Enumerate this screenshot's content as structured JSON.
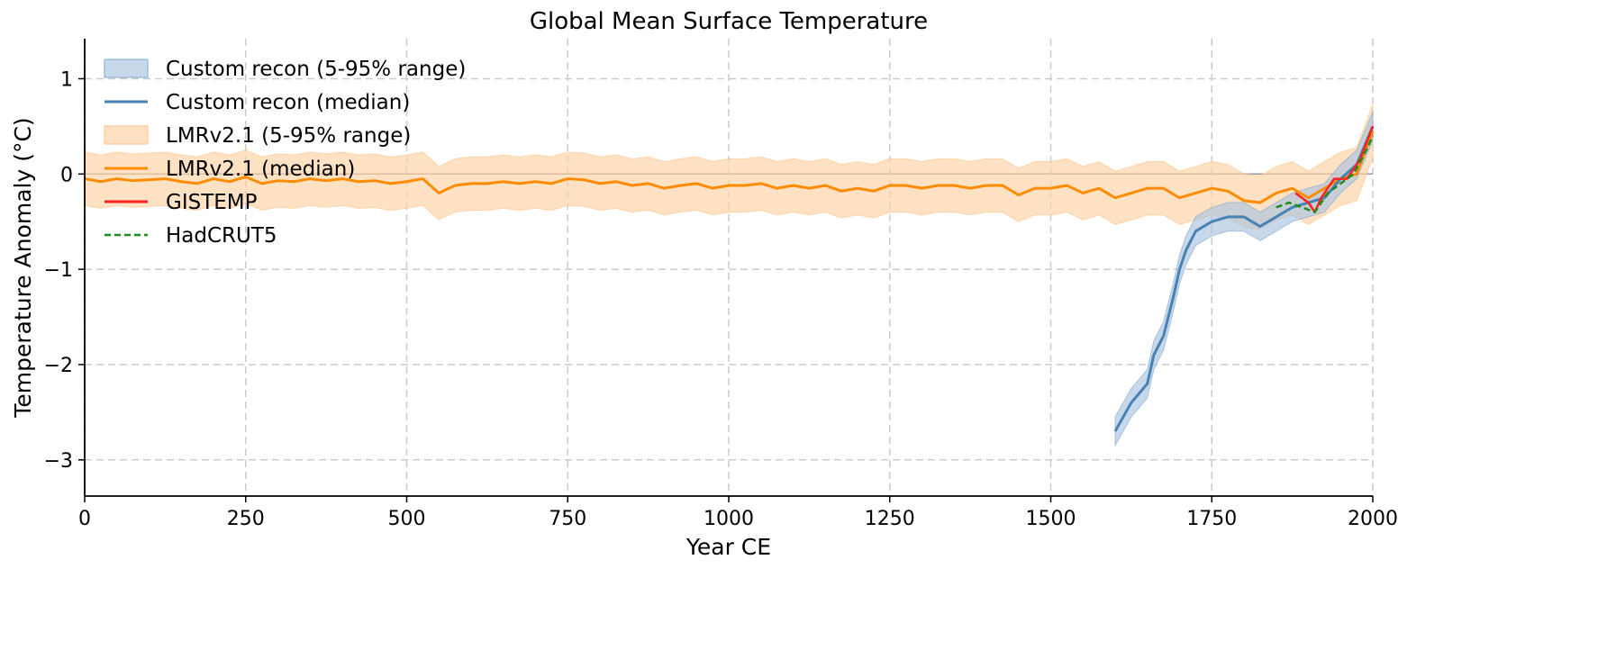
{
  "chart_data": {
    "type": "line",
    "title": "Global Mean Surface Temperature",
    "xlabel": "Year CE",
    "ylabel": "Temperature Anomaly (°C)",
    "xlim": [
      0,
      2000
    ],
    "ylim": [
      -3.38,
      1.42
    ],
    "xticks": [
      0,
      250,
      500,
      750,
      1000,
      1250,
      1500,
      1750,
      2000
    ],
    "xtick_labels": [
      "0",
      "250",
      "500",
      "750",
      "1000",
      "1250",
      "1500",
      "1750",
      "2000"
    ],
    "yticks": [
      -3,
      -2,
      -1,
      0,
      1
    ],
    "ytick_labels": [
      "−3",
      "−2",
      "−1",
      "0",
      "1"
    ],
    "grid": true,
    "reference_line": 0,
    "legend_position": "top-left",
    "legend": [
      "Custom recon (5-95% range)",
      "Custom recon (median)",
      "LMRv2.1 (5-95% range)",
      "LMRv2.1 (median)",
      "GISTEMP",
      "HadCRUT5"
    ],
    "colors": {
      "custom": "#4682b4",
      "custom_band": "#a9c3de",
      "lmr": "#ff8c00",
      "lmr_band": "#ffd3a3",
      "gistemp": "#ff2020",
      "hadcrut": "#1a8c1a"
    },
    "series": [
      {
        "name": "LMRv2.1 (median)",
        "x": [
          0,
          25,
          50,
          75,
          100,
          125,
          150,
          175,
          200,
          225,
          250,
          275,
          300,
          325,
          350,
          375,
          400,
          425,
          450,
          475,
          500,
          525,
          550,
          575,
          600,
          625,
          650,
          675,
          700,
          725,
          750,
          775,
          800,
          825,
          850,
          875,
          900,
          925,
          950,
          975,
          1000,
          1025,
          1050,
          1075,
          1100,
          1125,
          1150,
          1175,
          1200,
          1225,
          1250,
          1275,
          1300,
          1325,
          1350,
          1375,
          1400,
          1425,
          1450,
          1475,
          1500,
          1525,
          1550,
          1575,
          1600,
          1625,
          1650,
          1675,
          1700,
          1725,
          1750,
          1775,
          1800,
          1825,
          1850,
          1875,
          1900,
          1925,
          1950,
          1975,
          2000
        ],
        "y": [
          -0.05,
          -0.08,
          -0.05,
          -0.07,
          -0.06,
          -0.05,
          -0.08,
          -0.1,
          -0.05,
          -0.08,
          -0.03,
          -0.1,
          -0.07,
          -0.08,
          -0.05,
          -0.07,
          -0.05,
          -0.08,
          -0.07,
          -0.1,
          -0.08,
          -0.05,
          -0.2,
          -0.12,
          -0.1,
          -0.1,
          -0.08,
          -0.1,
          -0.08,
          -0.1,
          -0.05,
          -0.06,
          -0.1,
          -0.08,
          -0.12,
          -0.1,
          -0.15,
          -0.12,
          -0.1,
          -0.15,
          -0.12,
          -0.12,
          -0.1,
          -0.15,
          -0.12,
          -0.15,
          -0.12,
          -0.18,
          -0.15,
          -0.18,
          -0.12,
          -0.12,
          -0.15,
          -0.12,
          -0.12,
          -0.15,
          -0.12,
          -0.12,
          -0.22,
          -0.15,
          -0.15,
          -0.12,
          -0.2,
          -0.15,
          -0.25,
          -0.2,
          -0.15,
          -0.15,
          -0.25,
          -0.2,
          -0.15,
          -0.18,
          -0.28,
          -0.3,
          -0.2,
          -0.15,
          -0.25,
          -0.15,
          -0.05,
          0.0,
          0.45
        ],
        "band_halfwidth": 0.28
      },
      {
        "name": "Custom recon (median)",
        "x": [
          1600,
          1625,
          1650,
          1660,
          1675,
          1690,
          1700,
          1710,
          1725,
          1750,
          1775,
          1800,
          1825,
          1850,
          1875,
          1900,
          1925,
          1950,
          1975,
          2000
        ],
        "y": [
          -2.7,
          -2.4,
          -2.2,
          -1.9,
          -1.7,
          -1.3,
          -1.0,
          -0.8,
          -0.6,
          -0.5,
          -0.45,
          -0.45,
          -0.55,
          -0.45,
          -0.35,
          -0.3,
          -0.25,
          -0.05,
          0.1,
          0.5
        ],
        "band_halfwidth": 0.15
      },
      {
        "name": "GISTEMP",
        "x": [
          1880,
          1900,
          1910,
          1920,
          1940,
          1960,
          1980,
          2000
        ],
        "y": [
          -0.2,
          -0.3,
          -0.4,
          -0.25,
          -0.05,
          -0.05,
          0.15,
          0.5
        ]
      },
      {
        "name": "HadCRUT5",
        "x": [
          1850,
          1870,
          1890,
          1910,
          1930,
          1950,
          1970,
          1990,
          2000
        ],
        "y": [
          -0.35,
          -0.3,
          -0.35,
          -0.4,
          -0.2,
          -0.1,
          0.0,
          0.25,
          0.4
        ]
      }
    ]
  }
}
